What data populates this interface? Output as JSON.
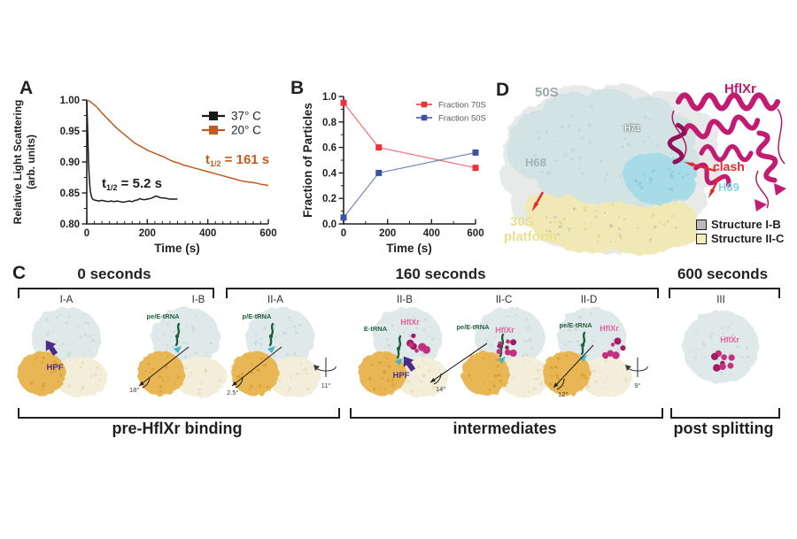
{
  "panelA": {
    "label": "A",
    "ylabel_line1": "Relative Light Scattering",
    "ylabel_line2": "(arb. units)",
    "xlabel": "Time (s)",
    "legend": [
      {
        "label": "37° C",
        "color": "#1a1a1a"
      },
      {
        "label": "20° C",
        "color": "#bf5b1e"
      }
    ],
    "annotations": [
      {
        "prefix": "t",
        "sub": "1/2",
        "suffix": " = 5.2 s",
        "color": "#1a1a1a"
      },
      {
        "prefix": "t",
        "sub": "1/2",
        "suffix": " = 161 s",
        "color": "#bf5b1e"
      }
    ]
  },
  "panelB": {
    "label": "B",
    "ylabel": "Fraction of Particles",
    "xlabel": "Time (s)",
    "legend": [
      {
        "label": "Fraction 70S",
        "color": "#ed3237"
      },
      {
        "label": "Fraction 50S",
        "color": "#3a53a4"
      }
    ]
  },
  "chart_data": [
    {
      "type": "line",
      "title": "",
      "xlabel": "Time (s)",
      "ylabel": "Relative Light Scattering (arb. units)",
      "xlim": [
        0,
        600
      ],
      "ylim": [
        0.8,
        1.0
      ],
      "xticks": [
        0,
        200,
        400,
        600
      ],
      "yticks": [
        0.8,
        0.85,
        0.9,
        0.95,
        1.0
      ],
      "x_minor_step": 25,
      "y_minor_step": 0.025,
      "grid": false,
      "legend_position": "top-right",
      "annotations": [
        "t1/2 = 5.2 s",
        "t1/2 = 161 s"
      ],
      "series": [
        {
          "name": "37° C",
          "color": "#1a1a1a",
          "points": [
            [
              0,
              1.0
            ],
            [
              2,
              0.965
            ],
            [
              4,
              0.93
            ],
            [
              6,
              0.9
            ],
            [
              8,
              0.878
            ],
            [
              10,
              0.862
            ],
            [
              12,
              0.852
            ],
            [
              15,
              0.845
            ],
            [
              18,
              0.841
            ],
            [
              22,
              0.839
            ],
            [
              30,
              0.838
            ],
            [
              40,
              0.837
            ],
            [
              50,
              0.838
            ],
            [
              60,
              0.837
            ],
            [
              70,
              0.836
            ],
            [
              80,
              0.837
            ],
            [
              90,
              0.836
            ],
            [
              100,
              0.837
            ],
            [
              110,
              0.836
            ],
            [
              120,
              0.835
            ],
            [
              130,
              0.836
            ],
            [
              140,
              0.837
            ],
            [
              150,
              0.836
            ],
            [
              160,
              0.838
            ],
            [
              170,
              0.839
            ],
            [
              175,
              0.841
            ],
            [
              180,
              0.84
            ],
            [
              190,
              0.839
            ],
            [
              200,
              0.84
            ],
            [
              210,
              0.841
            ],
            [
              220,
              0.843
            ],
            [
              228,
              0.845
            ],
            [
              235,
              0.844
            ],
            [
              245,
              0.842
            ],
            [
              255,
              0.842
            ],
            [
              265,
              0.841
            ],
            [
              275,
              0.84
            ],
            [
              285,
              0.84
            ],
            [
              295,
              0.84
            ],
            [
              300,
              0.84
            ]
          ]
        },
        {
          "name": "20° C",
          "color": "#bf5b1e",
          "points": [
            [
              0,
              1.0
            ],
            [
              10,
              0.998
            ],
            [
              20,
              0.994
            ],
            [
              30,
              0.99
            ],
            [
              40,
              0.985
            ],
            [
              50,
              0.979
            ],
            [
              60,
              0.974
            ],
            [
              70,
              0.969
            ],
            [
              80,
              0.964
            ],
            [
              90,
              0.959
            ],
            [
              100,
              0.954
            ],
            [
              115,
              0.948
            ],
            [
              130,
              0.942
            ],
            [
              145,
              0.936
            ],
            [
              160,
              0.93
            ],
            [
              175,
              0.926
            ],
            [
              190,
              0.922
            ],
            [
              200,
              0.919
            ],
            [
              215,
              0.916
            ],
            [
              230,
              0.913
            ],
            [
              245,
              0.91
            ],
            [
              260,
              0.907
            ],
            [
              275,
              0.903
            ],
            [
              290,
              0.9
            ],
            [
              305,
              0.898
            ],
            [
              320,
              0.895
            ],
            [
              335,
              0.893
            ],
            [
              350,
              0.891
            ],
            [
              365,
              0.889
            ],
            [
              380,
              0.887
            ],
            [
              395,
              0.885
            ],
            [
              410,
              0.883
            ],
            [
              425,
              0.881
            ],
            [
              440,
              0.879
            ],
            [
              455,
              0.877
            ],
            [
              470,
              0.875
            ],
            [
              485,
              0.873
            ],
            [
              500,
              0.871
            ],
            [
              515,
              0.869
            ],
            [
              530,
              0.868
            ],
            [
              545,
              0.867
            ],
            [
              560,
              0.866
            ],
            [
              575,
              0.864
            ],
            [
              590,
              0.863
            ],
            [
              600,
              0.862
            ]
          ]
        }
      ]
    },
    {
      "type": "line",
      "title": "",
      "xlabel": "Time (s)",
      "ylabel": "Fraction of Particles",
      "xlim": [
        0,
        600
      ],
      "ylim": [
        0.0,
        1.0
      ],
      "xticks": [
        0,
        200,
        400,
        600
      ],
      "yticks": [
        0.0,
        0.2,
        0.4,
        0.6,
        0.8,
        1.0
      ],
      "x_minor_step": 100,
      "y_minor_step": 0.1,
      "grid": false,
      "legend_position": "top-right",
      "series": [
        {
          "name": "Fraction 70S",
          "color": "#ed3237",
          "points": [
            [
              0,
              0.95
            ],
            [
              160,
              0.6
            ],
            [
              600,
              0.44
            ]
          ]
        },
        {
          "name": "Fraction 50S",
          "color": "#3a53a4",
          "points": [
            [
              0,
              0.05
            ],
            [
              160,
              0.4
            ],
            [
              600,
              0.56
            ]
          ]
        }
      ]
    }
  ],
  "panelC": {
    "label": "C",
    "time_groups": [
      {
        "label": "0 seconds"
      },
      {
        "label": "160 seconds"
      },
      {
        "label": "600 seconds"
      }
    ],
    "phase_groups": [
      {
        "label": "pre-HflXr binding"
      },
      {
        "label": "intermediates"
      },
      {
        "label": "post splitting"
      }
    ],
    "structures": [
      {
        "id": "I-A",
        "hpf_label": "HPF"
      },
      {
        "id": "I-B",
        "trna_label": "pe/E-tRNA",
        "angle": "18°"
      },
      {
        "id": "II-A",
        "trna_label": "p/E-tRNA",
        "angle": "2.5°",
        "rotation": "11°"
      },
      {
        "id": "II-B",
        "trna_label": "E-tRNA",
        "hflxr_label": "HflXr",
        "hpf_label": "HPF"
      },
      {
        "id": "II-C",
        "trna_label": "pe/E-tRNA",
        "hflxr_label": "HflXr",
        "angle": "14°"
      },
      {
        "id": "II-D",
        "trna_label": "pe/E-tRNA",
        "hflxr_label": "HflXr",
        "angle": "12°",
        "rotation": "9°"
      },
      {
        "id": "III",
        "hflxr_label": "HflXr"
      }
    ]
  },
  "panelD": {
    "label": "D",
    "labels": {
      "subunit50s": "50S",
      "hflxr": "HflXr",
      "h68": "H68",
      "h71": "H71",
      "clash": "clash",
      "h69": "H69",
      "platform_line1": "30S",
      "platform_line2": "platform"
    },
    "legend": [
      {
        "label": "Structure I-B",
        "color": "#b9b9b9"
      },
      {
        "label": "Structure II-C",
        "color": "#f3edc0"
      }
    ]
  },
  "colors": {
    "axis": "#231f20",
    "magenta_cluster": "#c2307f",
    "magenta_label": "#e2619f",
    "magenta_ribbon": "#c21b72",
    "purple_hpf": "#4c2c86",
    "green_trna": "#20603c",
    "cyan_trna": "#41b6c9",
    "blob_50s": "#dfe9e9",
    "blob_50s_dots": "#c0d3d3",
    "blob_30s_orange": "#e9b654",
    "blob_30s_orange_dots": "#d3951f",
    "blob_30s_pale": "#f3eeda",
    "blob_30s_pale_dots": "#e0d7b4",
    "map_50s": "#d3e2e2",
    "map_yellow": "#f0e9b5",
    "map_cyan": "#a6dbe7",
    "map_gray": "#d7dada",
    "red_accent": "#e8262a"
  }
}
